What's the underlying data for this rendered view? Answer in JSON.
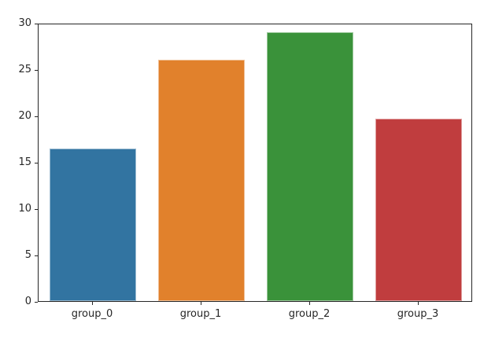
{
  "figure": {
    "background": "#ffffff",
    "spine_color": "#262626",
    "tick_label_color": "#262626"
  },
  "chart_data": {
    "type": "bar",
    "title": "",
    "xlabel": "",
    "ylabel": "",
    "categories": [
      "group_0",
      "group_1",
      "group_2",
      "group_3"
    ],
    "values": [
      16.4,
      26.0,
      29.0,
      19.7
    ],
    "bar_colors": [
      "#3274a1",
      "#e1812c",
      "#3a923a",
      "#c03d3e"
    ],
    "ylim": [
      0,
      30
    ],
    "yticks": [
      0,
      5,
      10,
      15,
      20,
      25,
      30
    ],
    "grid": false,
    "legend": null
  }
}
